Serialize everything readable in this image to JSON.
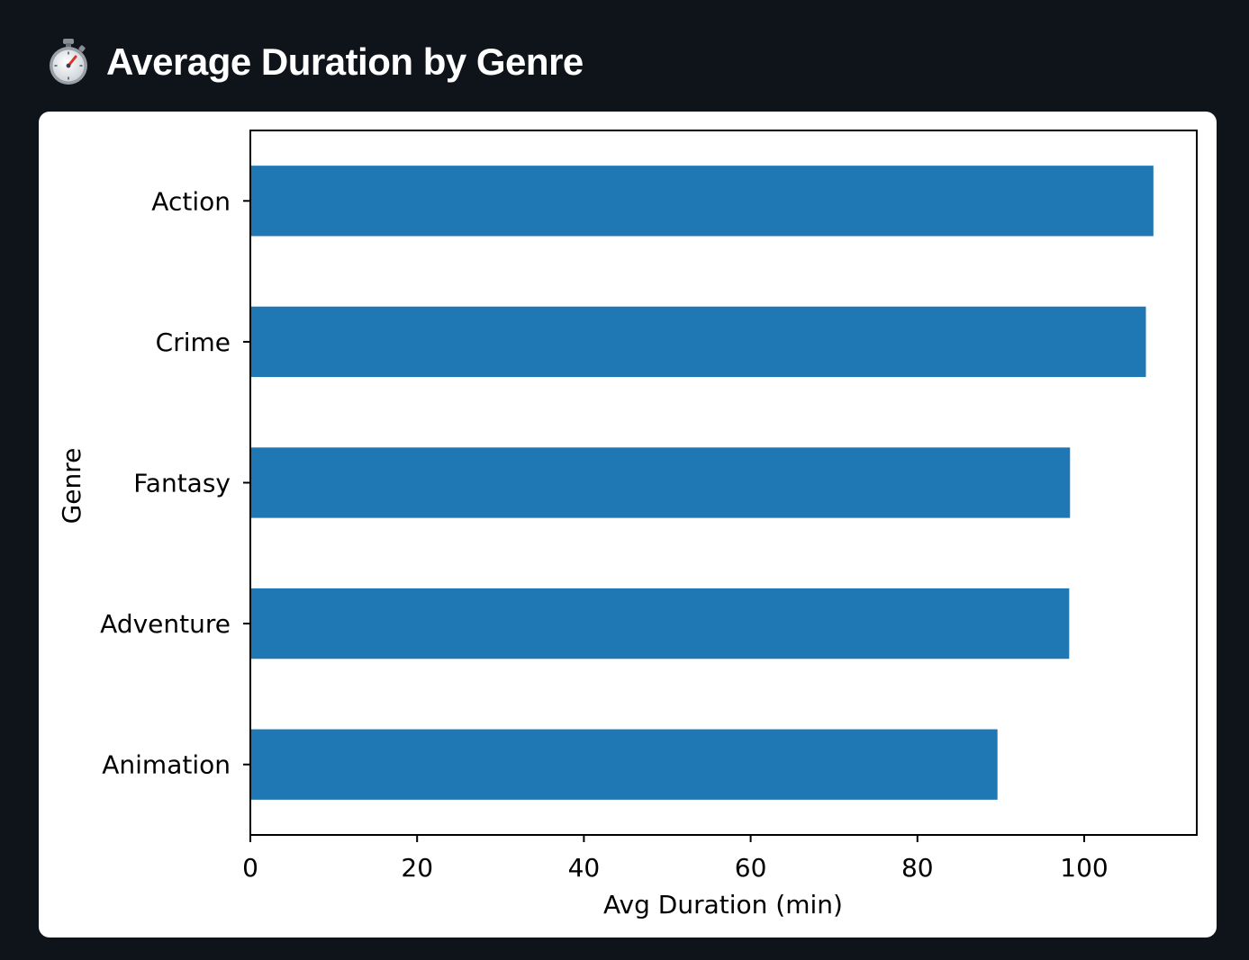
{
  "header": {
    "title": "Average Duration by Genre",
    "icon": "stopwatch-icon"
  },
  "chart_data": {
    "type": "bar",
    "orientation": "horizontal",
    "categories": [
      "Action",
      "Crime",
      "Fantasy",
      "Adventure",
      "Animation"
    ],
    "values": [
      108.3,
      107.4,
      98.3,
      98.2,
      89.6
    ],
    "xlabel": "Avg Duration (min)",
    "ylabel": "Genre",
    "xlim": [
      0,
      113.5
    ],
    "xticks": [
      0,
      20,
      40,
      60,
      80,
      100
    ],
    "bar_color": "#1f77b4",
    "grid": false,
    "legend": false
  }
}
